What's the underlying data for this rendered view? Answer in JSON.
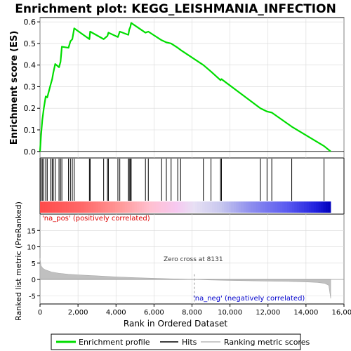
{
  "title": "Enrichment plot: KEGG_LEISHMANIA_INFECTION",
  "chart_data": {
    "type": "line",
    "title": "Enrichment plot: KEGG_LEISHMANIA_INFECTION",
    "xlabel": "Rank in Ordered Dataset",
    "ylabel_top": "Enrichment score (ES)",
    "ylabel_bottom": "Ranked list metric (PreRanked)",
    "xlim": [
      0,
      16000
    ],
    "x_ticks": [
      0,
      2000,
      4000,
      6000,
      8000,
      10000,
      12000,
      14000,
      16000
    ],
    "x_tick_labels": [
      "0",
      "2,000",
      "4,000",
      "6,000",
      "8,000",
      "10,000",
      "12,000",
      "14,000",
      "16,000"
    ],
    "es_ylim": [
      -0.03,
      0.62
    ],
    "es_ticks": [
      0.0,
      0.1,
      0.2,
      0.3,
      0.4,
      0.5,
      0.6
    ],
    "es_tick_labels": [
      "0.0",
      "0.1",
      "0.2",
      "0.3",
      "0.4",
      "0.5",
      "0.6"
    ],
    "metric_ylim": [
      -7.5,
      20
    ],
    "metric_ticks": [
      -5,
      0,
      5,
      10,
      15
    ],
    "metric_tick_labels": [
      "-5",
      "0",
      "5",
      "10",
      "15"
    ],
    "dataset_size": 15300,
    "zero_cross": 8131,
    "zero_cross_label": "Zero cross at 8131",
    "pos_label": "'na_pos' (positively correlated)",
    "neg_label": "'na_neg' (negatively correlated)",
    "hits": [
      50,
      120,
      200,
      300,
      380,
      560,
      640,
      700,
      800,
      1000,
      1080,
      1150,
      1500,
      1600,
      1700,
      1800,
      2600,
      2640,
      3350,
      3550,
      3600,
      4100,
      4200,
      4650,
      4700,
      4750,
      4800,
      5550,
      5700,
      6400,
      6650,
      6900,
      7250,
      7400,
      8600,
      9000,
      9500,
      9550,
      11600,
      11950,
      12200,
      13250,
      14950
    ],
    "es_series": {
      "name": "Enrichment profile",
      "x": [
        0,
        50,
        120,
        200,
        300,
        380,
        560,
        640,
        700,
        800,
        1000,
        1080,
        1150,
        1500,
        1600,
        1700,
        1800,
        2600,
        2640,
        3350,
        3550,
        3600,
        4100,
        4200,
        4650,
        4700,
        4750,
        4800,
        5550,
        5700,
        6400,
        6650,
        6900,
        7250,
        7400,
        8600,
        9000,
        9500,
        9550,
        11600,
        11950,
        12200,
        13250,
        14950,
        15300
      ],
      "y": [
        0.0,
        0.07,
        0.145,
        0.2,
        0.255,
        0.25,
        0.31,
        0.335,
        0.365,
        0.405,
        0.39,
        0.415,
        0.485,
        0.48,
        0.51,
        0.52,
        0.57,
        0.52,
        0.555,
        0.52,
        0.535,
        0.55,
        0.53,
        0.555,
        0.54,
        0.565,
        0.575,
        0.595,
        0.55,
        0.555,
        0.515,
        0.505,
        0.5,
        0.48,
        0.47,
        0.4,
        0.37,
        0.33,
        0.335,
        0.2,
        0.185,
        0.18,
        0.115,
        0.025,
        0.0
      ]
    },
    "metric_series": {
      "name": "Ranking metric scores",
      "x": [
        0,
        50,
        150,
        300,
        600,
        1000,
        1500,
        2000,
        3000,
        4000,
        5000,
        6000,
        7000,
        8131,
        9000,
        10000,
        11000,
        12000,
        13000,
        14000,
        14600,
        15000,
        15200,
        15300
      ],
      "y": [
        6.5,
        4.2,
        3.4,
        2.9,
        2.3,
        1.9,
        1.6,
        1.4,
        1.1,
        0.8,
        0.55,
        0.35,
        0.18,
        0.0,
        -0.15,
        -0.3,
        -0.4,
        -0.5,
        -0.6,
        -0.75,
        -0.9,
        -1.2,
        -1.8,
        -5.8
      ]
    },
    "legend": [
      {
        "label": "Enrichment profile",
        "color": "#00dd00"
      },
      {
        "label": "Hits",
        "color": "#000000"
      },
      {
        "label": "Ranking metric scores",
        "color": "#b8b8b8"
      }
    ],
    "legend_placement": "bottom"
  },
  "colors": {
    "es_line": "#00dd00",
    "hit": "#000000",
    "metric_fill": "#c0c0c0",
    "zero_line": "#999999",
    "pos_text": "#dd0000",
    "neg_text": "#0000cc",
    "grid": "#d8d8d8"
  }
}
